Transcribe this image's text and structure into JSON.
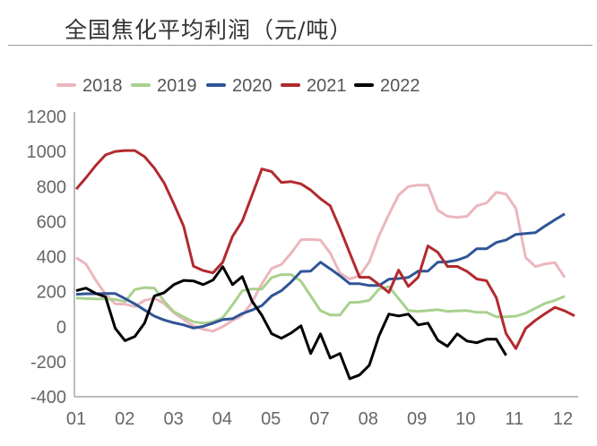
{
  "title": "全国焦化平均利润（元/吨）",
  "chart_data": {
    "type": "line",
    "title": "全国焦化平均利润（元/吨）",
    "xlabel": "",
    "ylabel": "",
    "ylim": [
      -400,
      1200
    ],
    "yticks": [
      "1200",
      "1000",
      "800",
      "600",
      "400",
      "200",
      "0",
      "-200",
      "-400"
    ],
    "ytick_values": [
      1200,
      1000,
      800,
      600,
      400,
      200,
      0,
      -200,
      -400
    ],
    "xticks": [
      "01",
      "02",
      "03",
      "04",
      "05",
      "07",
      "08",
      "09",
      "10",
      "11",
      "12"
    ],
    "grid": false,
    "legend": "top",
    "series": [
      {
        "name": "2018",
        "color": "#ebb6bd",
        "values": [
          394,
          358,
          265,
          185,
          130,
          128,
          115,
          150,
          163,
          132,
          80,
          40,
          5,
          -15,
          -26,
          0,
          35,
          65,
          140,
          245,
          332,
          355,
          420,
          496,
          498,
          494,
          420,
          305,
          272,
          290,
          370,
          520,
          640,
          751,
          800,
          808,
          808,
          665,
          630,
          624,
          630,
          690,
          706,
          767,
          757,
          675,
          395,
          343,
          358,
          365,
          281
        ]
      },
      {
        "name": "2019",
        "color": "#a9d18e",
        "values": [
          164,
          160,
          158,
          158,
          155,
          143,
          212,
          223,
          220,
          145,
          85,
          55,
          28,
          20,
          28,
          51,
          125,
          205,
          215,
          215,
          280,
          297,
          297,
          260,
          175,
          92,
          66,
          66,
          138,
          140,
          150,
          215,
          228,
          160,
          92,
          87,
          92,
          97,
          87,
          90,
          92,
          82,
          82,
          56,
          56,
          60,
          77,
          105,
          133,
          150,
          174
        ]
      },
      {
        "name": "2020",
        "color": "#2f5597",
        "values": [
          185,
          188,
          188,
          189,
          189,
          160,
          130,
          95,
          60,
          38,
          22,
          10,
          -8,
          2,
          20,
          40,
          46,
          75,
          95,
          120,
          175,
          205,
          255,
          315,
          317,
          368,
          330,
          290,
          245,
          245,
          235,
          235,
          271,
          275,
          281,
          317,
          317,
          368,
          370,
          380,
          400,
          445,
          445,
          481,
          495,
          527,
          532,
          537,
          575,
          610,
          644
        ]
      },
      {
        "name": "2021",
        "color": "#b22a2e",
        "values": [
          785,
          850,
          920,
          980,
          1000,
          1005,
          1005,
          970,
          905,
          820,
          700,
          573,
          345,
          320,
          307,
          368,
          515,
          603,
          750,
          900,
          885,
          823,
          828,
          815,
          780,
          730,
          690,
          560,
          420,
          282,
          282,
          240,
          195,
          323,
          230,
          282,
          461,
          425,
          344,
          344,
          315,
          272,
          262,
          165,
          -40,
          -125,
          -10,
          36,
          75,
          110,
          90,
          62
        ]
      },
      {
        "name": "2022",
        "color": "#000000",
        "values": [
          205,
          220,
          190,
          170,
          -10,
          -80,
          -56,
          20,
          175,
          194,
          240,
          264,
          261,
          240,
          266,
          342,
          240,
          286,
          145,
          65,
          -40,
          -66,
          -36,
          5,
          -153,
          -41,
          -179,
          -153,
          -297,
          -276,
          -220,
          -51,
          72,
          61,
          72,
          10,
          20,
          -77,
          -112,
          -41,
          -82,
          -92,
          -72,
          -72,
          -164
        ]
      }
    ]
  }
}
